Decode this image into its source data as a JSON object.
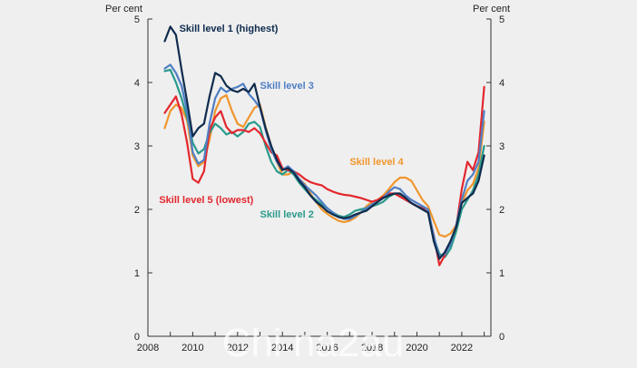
{
  "chart_data": {
    "type": "line",
    "y_unit_left": "Per cent",
    "y_unit_right": "Per cent",
    "ylim": [
      0,
      5
    ],
    "yticks": [
      0,
      1,
      2,
      3,
      4,
      5
    ],
    "xlim": [
      2008,
      2023.3
    ],
    "xticks": [
      2008,
      2010,
      2012,
      2014,
      2016,
      2018,
      2020,
      2022
    ],
    "xtick_labels": [
      "2008",
      "2010",
      "2012",
      "2014",
      "2016",
      "2018",
      "2020",
      "2022"
    ],
    "grid": false,
    "legend": "inline labels",
    "series": [
      {
        "name": "Skill level 4",
        "color": "#f0962d",
        "x": [
          2008.75,
          2009.0,
          2009.25,
          2009.5,
          2009.75,
          2010.0,
          2010.25,
          2010.5,
          2010.75,
          2011.0,
          2011.25,
          2011.5,
          2011.75,
          2012.0,
          2012.25,
          2012.5,
          2012.75,
          2013.0,
          2013.25,
          2013.5,
          2013.75,
          2014.0,
          2014.25,
          2014.5,
          2014.75,
          2015.0,
          2015.25,
          2015.5,
          2015.75,
          2016.0,
          2016.25,
          2016.5,
          2016.75,
          2017.0,
          2017.25,
          2017.5,
          2017.75,
          2018.0,
          2018.25,
          2018.5,
          2018.75,
          2019.0,
          2019.25,
          2019.5,
          2019.75,
          2020.0,
          2020.25,
          2020.5,
          2020.75,
          2021.0,
          2021.25,
          2021.5,
          2021.75,
          2022.0,
          2022.25,
          2022.5,
          2022.75,
          2023.0
        ],
        "values": [
          3.28,
          3.55,
          3.65,
          3.6,
          3.4,
          2.85,
          2.68,
          2.75,
          3.1,
          3.55,
          3.75,
          3.8,
          3.55,
          3.35,
          3.3,
          3.45,
          3.6,
          3.65,
          3.3,
          3.0,
          2.75,
          2.55,
          2.55,
          2.6,
          2.48,
          2.4,
          2.25,
          2.12,
          2.0,
          1.93,
          1.87,
          1.82,
          1.8,
          1.82,
          1.87,
          1.95,
          2.05,
          2.12,
          2.15,
          2.22,
          2.32,
          2.43,
          2.5,
          2.5,
          2.45,
          2.3,
          2.15,
          2.05,
          1.82,
          1.6,
          1.57,
          1.62,
          1.75,
          2.1,
          2.3,
          2.4,
          2.65,
          3.38
        ]
      },
      {
        "name": "Skill level 2",
        "color": "#2a9a8c",
        "x": [
          2008.75,
          2009.0,
          2009.25,
          2009.5,
          2009.75,
          2010.0,
          2010.25,
          2010.5,
          2010.75,
          2011.0,
          2011.25,
          2011.5,
          2011.75,
          2012.0,
          2012.25,
          2012.5,
          2012.75,
          2013.0,
          2013.25,
          2013.5,
          2013.75,
          2014.0,
          2014.25,
          2014.5,
          2014.75,
          2015.0,
          2015.25,
          2015.5,
          2015.75,
          2016.0,
          2016.25,
          2016.5,
          2016.75,
          2017.0,
          2017.25,
          2017.5,
          2017.75,
          2018.0,
          2018.25,
          2018.5,
          2018.75,
          2019.0,
          2019.25,
          2019.5,
          2019.75,
          2020.0,
          2020.25,
          2020.5,
          2020.75,
          2021.0,
          2021.25,
          2021.5,
          2021.75,
          2022.0,
          2022.25,
          2022.5,
          2022.75,
          2023.0
        ],
        "values": [
          4.18,
          4.2,
          4.0,
          3.75,
          3.45,
          3.05,
          2.88,
          2.95,
          3.2,
          3.35,
          3.28,
          3.18,
          3.22,
          3.15,
          3.22,
          3.35,
          3.38,
          3.3,
          3.0,
          2.75,
          2.6,
          2.55,
          2.62,
          2.55,
          2.42,
          2.32,
          2.22,
          2.15,
          2.08,
          2.02,
          1.95,
          1.9,
          1.88,
          1.92,
          1.98,
          2.0,
          2.02,
          2.05,
          2.08,
          2.12,
          2.2,
          2.25,
          2.22,
          2.15,
          2.1,
          2.05,
          2.0,
          1.95,
          1.55,
          1.3,
          1.25,
          1.38,
          1.65,
          2.0,
          2.15,
          2.3,
          2.55,
          3.0
        ]
      },
      {
        "name": "Skill level 5 (lowest)",
        "color": "#e3272d",
        "x": [
          2008.75,
          2009.0,
          2009.25,
          2009.5,
          2009.75,
          2010.0,
          2010.25,
          2010.5,
          2010.75,
          2011.0,
          2011.25,
          2011.5,
          2011.75,
          2012.0,
          2012.25,
          2012.5,
          2012.75,
          2013.0,
          2013.25,
          2013.5,
          2013.75,
          2014.0,
          2014.25,
          2014.5,
          2014.75,
          2015.0,
          2015.25,
          2015.5,
          2015.75,
          2016.0,
          2016.25,
          2016.5,
          2016.75,
          2017.0,
          2017.25,
          2017.5,
          2017.75,
          2018.0,
          2018.25,
          2018.5,
          2018.75,
          2019.0,
          2019.25,
          2019.5,
          2019.75,
          2020.0,
          2020.25,
          2020.5,
          2020.75,
          2021.0,
          2021.25,
          2021.5,
          2021.75,
          2022.0,
          2022.25,
          2022.5,
          2022.75,
          2023.0
        ],
        "values": [
          3.52,
          3.65,
          3.78,
          3.5,
          3.05,
          2.48,
          2.42,
          2.6,
          3.25,
          3.45,
          3.55,
          3.3,
          3.2,
          3.25,
          3.25,
          3.22,
          3.28,
          3.2,
          3.05,
          2.9,
          2.85,
          2.65,
          2.62,
          2.6,
          2.55,
          2.48,
          2.43,
          2.4,
          2.38,
          2.32,
          2.28,
          2.25,
          2.23,
          2.22,
          2.2,
          2.18,
          2.15,
          2.12,
          2.15,
          2.2,
          2.25,
          2.25,
          2.2,
          2.15,
          2.1,
          2.05,
          2.02,
          1.95,
          1.6,
          1.12,
          1.28,
          1.5,
          1.72,
          2.32,
          2.75,
          2.62,
          2.9,
          3.93
        ]
      },
      {
        "name": "Skill level 3",
        "color": "#4f7fc4",
        "x": [
          2008.75,
          2009.0,
          2009.25,
          2009.5,
          2009.75,
          2010.0,
          2010.25,
          2010.5,
          2010.75,
          2011.0,
          2011.25,
          2011.5,
          2011.75,
          2012.0,
          2012.25,
          2012.5,
          2012.75,
          2013.0,
          2013.25,
          2013.5,
          2013.75,
          2014.0,
          2014.25,
          2014.5,
          2014.75,
          2015.0,
          2015.25,
          2015.5,
          2015.75,
          2016.0,
          2016.25,
          2016.5,
          2016.75,
          2017.0,
          2017.25,
          2017.5,
          2017.75,
          2018.0,
          2018.25,
          2018.5,
          2018.75,
          2019.0,
          2019.25,
          2019.5,
          2019.75,
          2020.0,
          2020.25,
          2020.5,
          2020.75,
          2021.0,
          2021.25,
          2021.5,
          2021.75,
          2022.0,
          2022.25,
          2022.5,
          2022.75,
          2023.0
        ],
        "values": [
          4.22,
          4.28,
          4.15,
          3.95,
          3.55,
          2.9,
          2.72,
          2.78,
          3.35,
          3.75,
          3.92,
          3.85,
          3.9,
          3.93,
          3.98,
          3.82,
          3.72,
          3.6,
          3.25,
          2.95,
          2.75,
          2.62,
          2.68,
          2.6,
          2.48,
          2.38,
          2.3,
          2.22,
          2.12,
          2.02,
          1.95,
          1.88,
          1.85,
          1.85,
          1.9,
          1.95,
          2.02,
          2.08,
          2.12,
          2.18,
          2.28,
          2.35,
          2.32,
          2.22,
          2.15,
          2.1,
          2.05,
          2.0,
          1.58,
          1.25,
          1.3,
          1.45,
          1.75,
          2.15,
          2.45,
          2.55,
          2.75,
          3.55
        ]
      },
      {
        "name": "Skill level 1 (highest)",
        "color": "#0f2b4d",
        "x": [
          2008.75,
          2009.0,
          2009.25,
          2009.5,
          2009.75,
          2010.0,
          2010.25,
          2010.5,
          2010.75,
          2011.0,
          2011.25,
          2011.5,
          2011.75,
          2012.0,
          2012.25,
          2012.5,
          2012.75,
          2013.0,
          2013.25,
          2013.5,
          2013.75,
          2014.0,
          2014.25,
          2014.5,
          2014.75,
          2015.0,
          2015.25,
          2015.5,
          2015.75,
          2016.0,
          2016.25,
          2016.5,
          2016.75,
          2017.0,
          2017.25,
          2017.5,
          2017.75,
          2018.0,
          2018.25,
          2018.5,
          2018.75,
          2019.0,
          2019.25,
          2019.5,
          2019.75,
          2020.0,
          2020.25,
          2020.5,
          2020.75,
          2021.0,
          2021.25,
          2021.5,
          2021.75,
          2022.0,
          2022.25,
          2022.5,
          2022.75,
          2023.0
        ],
        "values": [
          4.65,
          4.88,
          4.75,
          4.2,
          3.7,
          3.15,
          3.28,
          3.35,
          3.78,
          4.15,
          4.1,
          3.95,
          3.88,
          3.85,
          3.9,
          3.85,
          3.98,
          3.62,
          3.28,
          3.0,
          2.78,
          2.62,
          2.65,
          2.58,
          2.45,
          2.35,
          2.22,
          2.12,
          2.05,
          1.97,
          1.92,
          1.88,
          1.86,
          1.88,
          1.92,
          1.95,
          1.98,
          2.05,
          2.12,
          2.18,
          2.22,
          2.25,
          2.25,
          2.18,
          2.1,
          2.05,
          2.0,
          1.95,
          1.5,
          1.22,
          1.33,
          1.5,
          1.72,
          2.1,
          2.18,
          2.25,
          2.45,
          2.85
        ]
      }
    ],
    "annotations": [
      {
        "text": "Skill level 1 (highest)",
        "series": "Skill level 1 (highest)",
        "x": 2009.4,
        "y": 4.8
      },
      {
        "text": "Skill level 3",
        "series": "Skill level 3",
        "x": 2013.0,
        "y": 3.9
      },
      {
        "text": "Skill level 4",
        "series": "Skill level 4",
        "x": 2017.0,
        "y": 2.7
      },
      {
        "text": "Skill level 5 (lowest)",
        "series": "Skill level 5 (lowest)",
        "x": 2008.5,
        "y": 2.1
      },
      {
        "text": "Skill level 2",
        "series": "Skill level 2",
        "x": 2013.0,
        "y": 1.87
      }
    ]
  },
  "watermark": "Chi na2au"
}
